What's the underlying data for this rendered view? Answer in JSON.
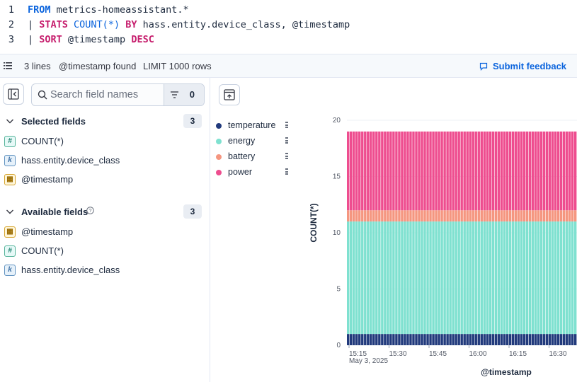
{
  "query": {
    "lines": [
      {
        "num": "1",
        "tokens": [
          {
            "t": "FROM",
            "c": "kw"
          },
          {
            "t": " metrics-homeassistant.*",
            "c": "txt"
          }
        ]
      },
      {
        "num": "2",
        "tokens": [
          {
            "t": "| ",
            "c": "pipe"
          },
          {
            "t": "STATS",
            "c": "kw2"
          },
          {
            "t": " ",
            "c": "txt"
          },
          {
            "t": "COUNT(*)",
            "c": "fn"
          },
          {
            "t": " ",
            "c": "txt"
          },
          {
            "t": "BY",
            "c": "kw2"
          },
          {
            "t": " hass.entity.device_class, @timestamp",
            "c": "txt"
          }
        ]
      },
      {
        "num": "3",
        "tokens": [
          {
            "t": "| ",
            "c": "pipe"
          },
          {
            "t": "SORT",
            "c": "kw2"
          },
          {
            "t": " @timestamp ",
            "c": "txt"
          },
          {
            "t": "DESC",
            "c": "kw2"
          }
        ]
      }
    ]
  },
  "status": {
    "lines": "3 lines",
    "timestamp": "@timestamp found",
    "limit": "LIMIT 1000 rows",
    "feedback": "Submit feedback"
  },
  "sidebar": {
    "search_placeholder": "Search field names",
    "filter_count": "0",
    "selected_title": "Selected fields",
    "selected_count": "3",
    "selected": [
      {
        "type": "num",
        "glyph": "#",
        "name": "COUNT(*)"
      },
      {
        "type": "kwd",
        "glyph": "k",
        "name": "hass.entity.device_class"
      },
      {
        "type": "date",
        "glyph": "▦",
        "name": "@timestamp"
      }
    ],
    "available_title": "Available fields",
    "available_count": "3",
    "available": [
      {
        "type": "date",
        "glyph": "▦",
        "name": "@timestamp"
      },
      {
        "type": "num",
        "glyph": "#",
        "name": "COUNT(*)"
      },
      {
        "type": "kwd",
        "glyph": "k",
        "name": "hass.entity.device_class"
      }
    ]
  },
  "chart_data": {
    "type": "bar",
    "stacked": true,
    "xlabel": "@timestamp",
    "ylabel": "COUNT(*)",
    "ylim": [
      0,
      20
    ],
    "yticks": [
      0,
      5,
      10,
      15,
      20
    ],
    "xticks": [
      "15:15",
      "15:30",
      "15:45",
      "16:00",
      "16:15",
      "16:30"
    ],
    "x_sub_label": "May 3, 2025",
    "bar_count": 84,
    "legend_position": "left",
    "series": [
      {
        "name": "temperature",
        "color": "#213a7c",
        "value": 1
      },
      {
        "name": "energy",
        "color": "#7fe1d0",
        "value": 10
      },
      {
        "name": "battery",
        "color": "#f59680",
        "value": 1
      },
      {
        "name": "power",
        "color": "#ee4d8f",
        "value": 7
      }
    ]
  }
}
